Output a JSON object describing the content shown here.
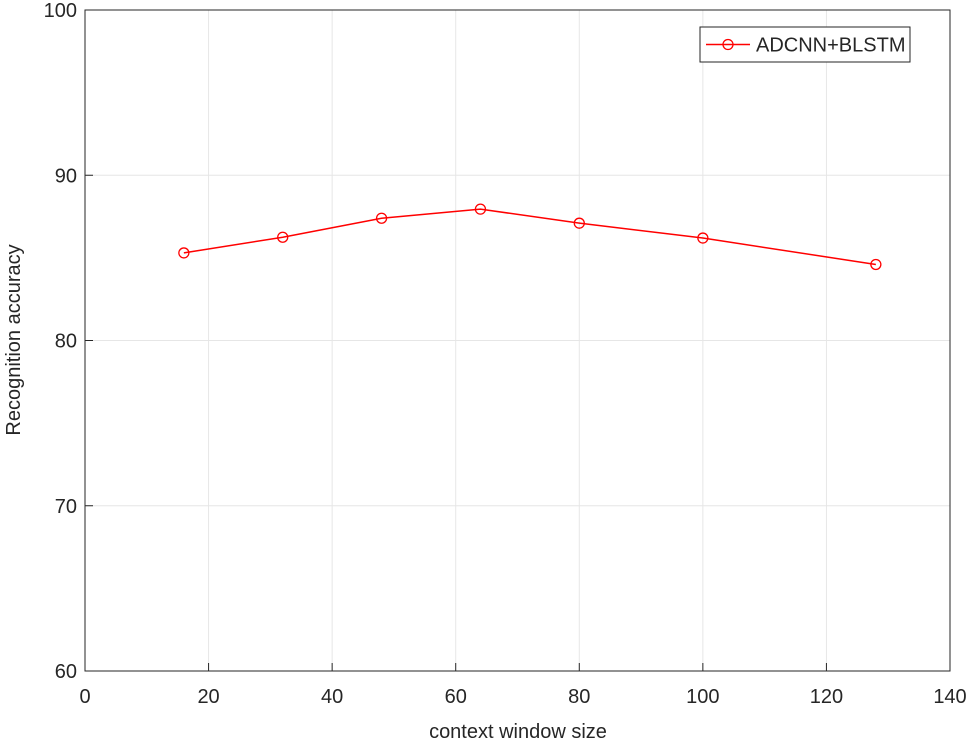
{
  "chart_data": {
    "type": "line",
    "x_label": "context window size",
    "y_label": "Recognition accuracy",
    "x": [
      16,
      32,
      48,
      64,
      80,
      100,
      128
    ],
    "series": [
      {
        "name": "ADCNN+BLSTM",
        "color": "#ff0000",
        "values": [
          85.3,
          86.25,
          87.4,
          87.95,
          87.1,
          86.2,
          84.6
        ]
      }
    ],
    "xlim": [
      0,
      140
    ],
    "xticks": [
      0,
      20,
      40,
      60,
      80,
      100,
      120,
      140
    ],
    "ylim": [
      60,
      100
    ],
    "yticks": [
      60,
      70,
      80,
      90,
      100
    ],
    "grid": true,
    "legend": "northeast"
  }
}
